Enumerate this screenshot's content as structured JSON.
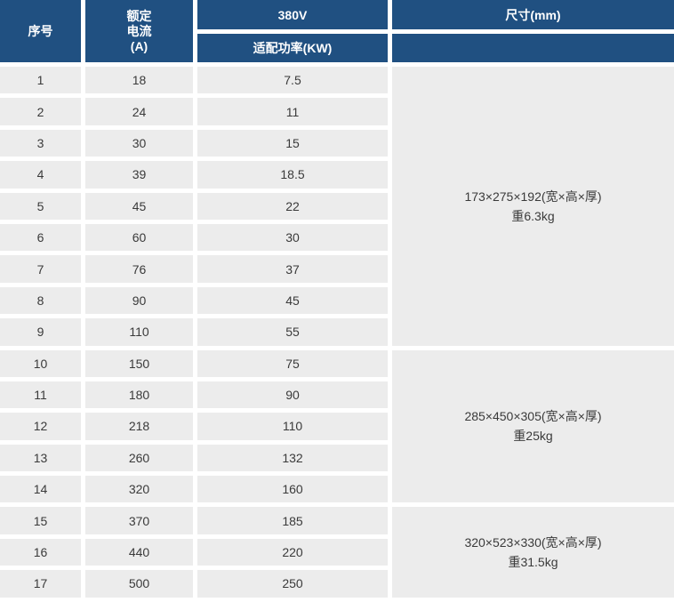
{
  "table": {
    "headers": {
      "serial": "序号",
      "current_line1": "额定",
      "current_line2": "电流",
      "current_line3": "(A)",
      "voltage": "380V",
      "power": "适配功率(KW)",
      "size": "尺寸(mm)"
    },
    "rows": [
      {
        "no": "1",
        "current": "18",
        "power": "7.5"
      },
      {
        "no": "2",
        "current": "24",
        "power": "11"
      },
      {
        "no": "3",
        "current": "30",
        "power": "15"
      },
      {
        "no": "4",
        "current": "39",
        "power": "18.5"
      },
      {
        "no": "5",
        "current": "45",
        "power": "22"
      },
      {
        "no": "6",
        "current": "60",
        "power": "30"
      },
      {
        "no": "7",
        "current": "76",
        "power": "37"
      },
      {
        "no": "8",
        "current": "90",
        "power": "45"
      },
      {
        "no": "9",
        "current": "110",
        "power": "55"
      },
      {
        "no": "10",
        "current": "150",
        "power": "75"
      },
      {
        "no": "11",
        "current": "180",
        "power": "90"
      },
      {
        "no": "12",
        "current": "218",
        "power": "110"
      },
      {
        "no": "13",
        "current": "260",
        "power": "132"
      },
      {
        "no": "14",
        "current": "320",
        "power": "160"
      },
      {
        "no": "15",
        "current": "370",
        "power": "185"
      },
      {
        "no": "16",
        "current": "440",
        "power": "220"
      },
      {
        "no": "17",
        "current": "500",
        "power": "250"
      }
    ],
    "size_groups": [
      {
        "dims": "173×275×192(宽×高×厚)",
        "weight": "重6.3kg"
      },
      {
        "dims": "285×450×305(宽×高×厚)",
        "weight": "重25kg"
      },
      {
        "dims": "320×523×330(宽×高×厚)",
        "weight": "重31.5kg"
      }
    ],
    "colors": {
      "header_bg": "#205081",
      "header_text": "#FFFFFF",
      "row_bg": "#ECECEC",
      "row_text": "#3A3A3A",
      "gap": "#FFFFFF"
    }
  }
}
